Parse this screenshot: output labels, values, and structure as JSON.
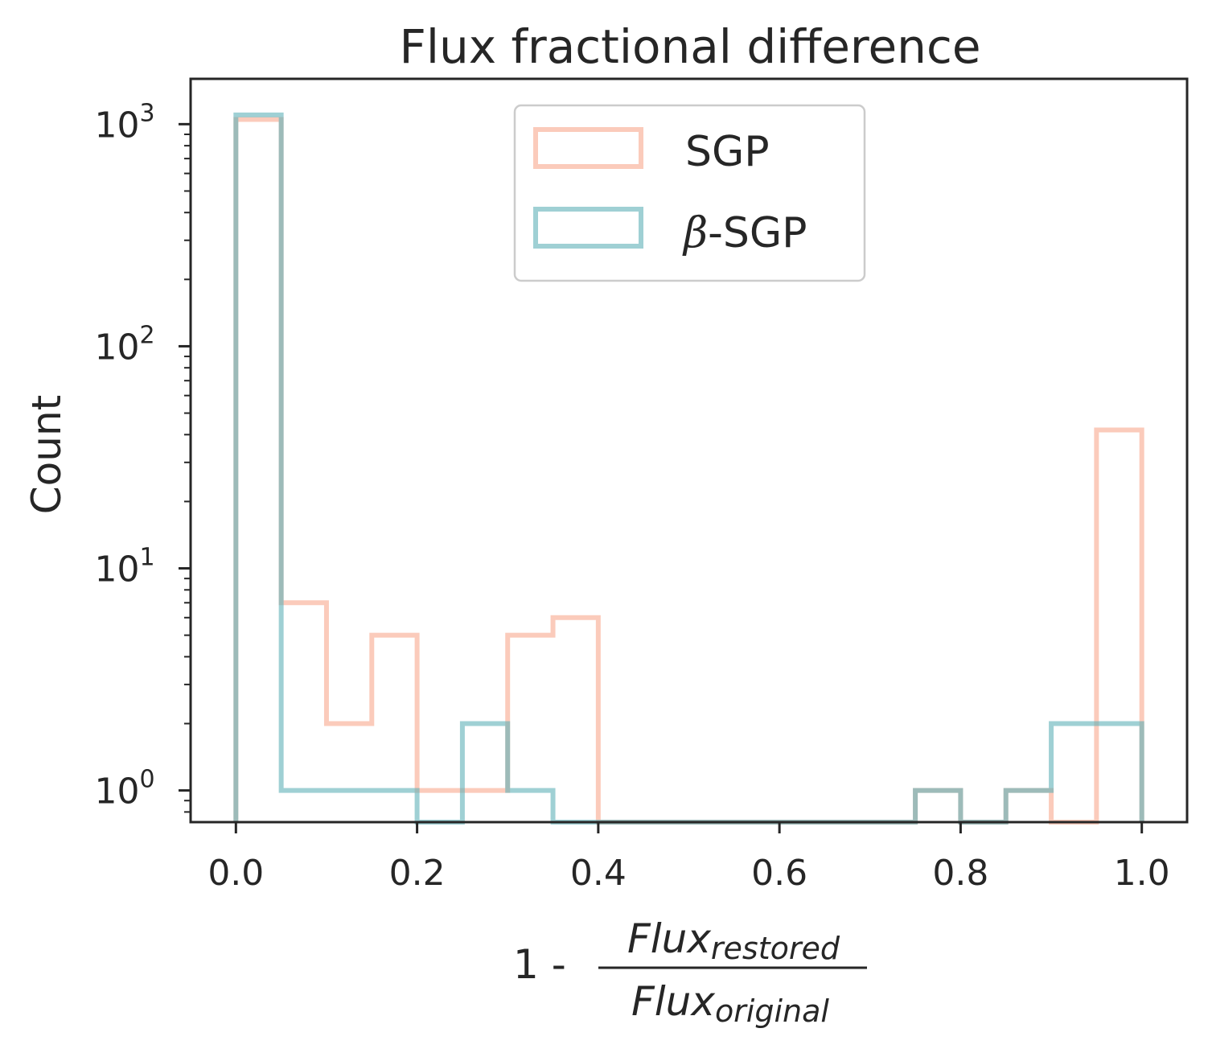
{
  "chart_data": {
    "type": "histogram",
    "title": "Flux fractional difference",
    "xlabel": {
      "prefix": "1 - ",
      "numerator": "Flux",
      "numerator_sub": "restored",
      "denominator": "Flux",
      "denominator_sub": "original"
    },
    "ylabel": "Count",
    "yscale": "log",
    "xlim": [
      -0.05,
      1.05
    ],
    "ylim": [
      0.72,
      1600
    ],
    "grid": false,
    "legend_position": "upper center",
    "x_ticks": [
      {
        "value": 0.0,
        "label": "0.0"
      },
      {
        "value": 0.2,
        "label": "0.2"
      },
      {
        "value": 0.4,
        "label": "0.4"
      },
      {
        "value": 0.6,
        "label": "0.6"
      },
      {
        "value": 0.8,
        "label": "0.8"
      },
      {
        "value": 1.0,
        "label": "1.0"
      }
    ],
    "y_ticks": [
      {
        "value": 1,
        "base": "10",
        "exp": "0"
      },
      {
        "value": 10,
        "base": "10",
        "exp": "1"
      },
      {
        "value": 100,
        "base": "10",
        "exp": "2"
      },
      {
        "value": 1000,
        "base": "10",
        "exp": "3"
      }
    ],
    "bin_edges": [
      0.0,
      0.05,
      0.1,
      0.15,
      0.2,
      0.25,
      0.3,
      0.35,
      0.4,
      0.45,
      0.5,
      0.55,
      0.6,
      0.65,
      0.7,
      0.75,
      0.8,
      0.85,
      0.9,
      0.95,
      1.0
    ],
    "series": [
      {
        "name": "SGP",
        "color": "#f9a88e",
        "counts": [
          1050,
          7,
          2,
          5,
          1,
          1,
          5,
          6,
          0,
          0,
          0,
          0,
          0,
          0,
          0,
          1,
          0,
          1,
          0,
          42
        ]
      },
      {
        "name": "β-SGP",
        "name_symbol": "β",
        "name_rest": "-SGP",
        "color": "#5fb0b7",
        "counts": [
          1100,
          1,
          1,
          1,
          0,
          2,
          1,
          0,
          0,
          0,
          0,
          0,
          0,
          0,
          0,
          1,
          0,
          1,
          2,
          2
        ]
      }
    ]
  }
}
